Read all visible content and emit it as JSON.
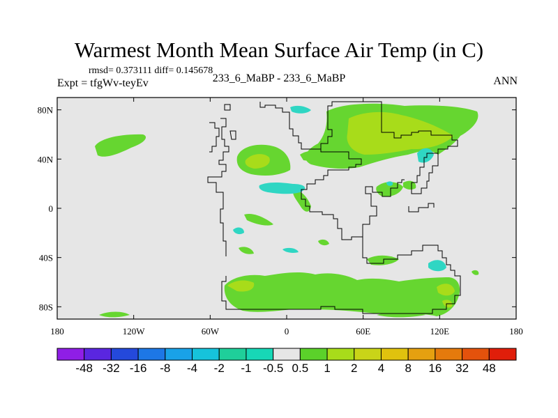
{
  "title": "Warmest Month Mean Surface Air Temp (in C)",
  "stats": "rmsd= 0.373111 diff= 0.145678",
  "expt": "Expt = tfgWv-teyEv",
  "center_label": "233_6_MaBP - 233_6_MaBP",
  "season": "ANN",
  "axes": {
    "x_ticks": [
      {
        "value": -180,
        "label": "180"
      },
      {
        "value": -120,
        "label": "120W"
      },
      {
        "value": -60,
        "label": "60W"
      },
      {
        "value": 0,
        "label": "0"
      },
      {
        "value": 60,
        "label": "60E"
      },
      {
        "value": 120,
        "label": "120E"
      },
      {
        "value": 180,
        "label": "180"
      }
    ],
    "y_ticks": [
      {
        "value": 80,
        "label": "80N"
      },
      {
        "value": 40,
        "label": "40N"
      },
      {
        "value": 0,
        "label": "0"
      },
      {
        "value": -40,
        "label": "40S"
      },
      {
        "value": -80,
        "label": "80S"
      }
    ],
    "xlim": [
      -180,
      180
    ],
    "ylim": [
      -90,
      90
    ]
  },
  "colorbar": {
    "colors": [
      "#8f1ee6",
      "#5a26e0",
      "#2449db",
      "#1d77e6",
      "#19a2e8",
      "#16c3db",
      "#1fcf9a",
      "#17d7b6",
      "#e6e6e6",
      "#5bd12a",
      "#a8dc1a",
      "#c9d418",
      "#e0c20e",
      "#e5a010",
      "#e57a0c",
      "#e4520c",
      "#e01e0a"
    ],
    "labels": [
      "-48",
      "-32",
      "-16",
      "-8",
      "-4",
      "-2",
      "-1",
      "-0.5",
      "0.5",
      "1",
      "2",
      "4",
      "8",
      "16",
      "32",
      "48"
    ]
  },
  "map_colors": {
    "background": "#e6e6e6",
    "light_green": "#66d630",
    "yellow_green": "#a8dc1a",
    "cyan": "#2fd6c3",
    "coast": "#000000"
  }
}
